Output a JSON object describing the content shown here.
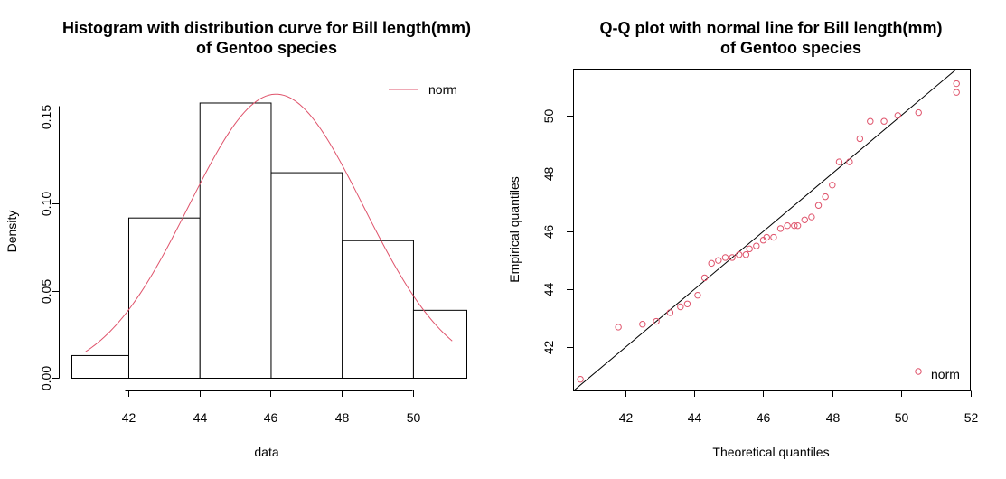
{
  "chart_data": [
    {
      "type": "histogram",
      "title_line1": "Histogram with distribution curve for Bill length(mm)",
      "title_line2": "of Gentoo species",
      "xlabel": "data",
      "ylabel": "Density",
      "xlim": [
        40.4,
        51.5
      ],
      "ylim": [
        0,
        0.165
      ],
      "x_ticks": [
        "42",
        "44",
        "46",
        "48",
        "50"
      ],
      "x_tick_values": [
        42,
        44,
        46,
        48,
        50
      ],
      "y_ticks": [
        "0.00",
        "0.05",
        "0.10",
        "0.15"
      ],
      "y_tick_values": [
        0,
        0.05,
        0.1,
        0.15
      ],
      "bins": [
        {
          "from": 40,
          "to": 42,
          "density": 0.013
        },
        {
          "from": 42,
          "to": 44,
          "density": 0.092
        },
        {
          "from": 44,
          "to": 46,
          "density": 0.158
        },
        {
          "from": 46,
          "to": 48,
          "density": 0.118
        },
        {
          "from": 48,
          "to": 50,
          "density": 0.079
        },
        {
          "from": 50,
          "to": 52,
          "density": 0.039
        }
      ],
      "curve": {
        "name": "norm",
        "type": "normal",
        "mean": 46.15,
        "sd": 2.45,
        "from": 40.8,
        "to": 51.1,
        "color": "#df536b"
      },
      "legend": {
        "position": "top-right",
        "entries": [
          "norm"
        ]
      }
    },
    {
      "type": "scatter",
      "title_line1": "Q-Q plot with normal line for Bill length(mm)",
      "title_line2": "of Gentoo species",
      "xlabel": "Theoretical quantiles",
      "ylabel": "Empirical quantiles",
      "xlim": [
        40.5,
        52
      ],
      "ylim": [
        40.5,
        51.6
      ],
      "x_ticks": [
        "42",
        "44",
        "46",
        "48",
        "50",
        "52"
      ],
      "x_tick_values": [
        42,
        44,
        46,
        48,
        50,
        52
      ],
      "y_ticks": [
        "42",
        "44",
        "46",
        "48",
        "50"
      ],
      "y_tick_values": [
        42,
        44,
        46,
        48,
        50
      ],
      "point_color": "#df536b",
      "points": [
        [
          40.7,
          40.9
        ],
        [
          41.8,
          42.7
        ],
        [
          42.5,
          42.8
        ],
        [
          42.9,
          42.9
        ],
        [
          43.3,
          43.2
        ],
        [
          43.6,
          43.4
        ],
        [
          43.8,
          43.5
        ],
        [
          44.1,
          43.8
        ],
        [
          44.3,
          44.4
        ],
        [
          44.5,
          44.9
        ],
        [
          44.7,
          45.0
        ],
        [
          44.9,
          45.1
        ],
        [
          45.1,
          45.1
        ],
        [
          45.3,
          45.2
        ],
        [
          45.5,
          45.2
        ],
        [
          45.6,
          45.4
        ],
        [
          45.8,
          45.5
        ],
        [
          46.0,
          45.7
        ],
        [
          46.1,
          45.8
        ],
        [
          46.3,
          45.8
        ],
        [
          46.5,
          46.1
        ],
        [
          46.7,
          46.2
        ],
        [
          46.9,
          46.2
        ],
        [
          47.0,
          46.2
        ],
        [
          47.2,
          46.4
        ],
        [
          47.4,
          46.5
        ],
        [
          47.6,
          46.9
        ],
        [
          47.8,
          47.2
        ],
        [
          48.0,
          47.6
        ],
        [
          48.2,
          48.4
        ],
        [
          48.5,
          48.4
        ],
        [
          48.8,
          49.2
        ],
        [
          49.1,
          49.8
        ],
        [
          49.5,
          49.8
        ],
        [
          49.9,
          50.0
        ],
        [
          50.5,
          50.1
        ],
        [
          51.6,
          50.8
        ],
        [
          51.6,
          51.1
        ]
      ],
      "reference_line": {
        "slope": 1,
        "intercept": 0,
        "color": "#000000"
      },
      "legend": {
        "position": "bottom-right",
        "entries": [
          "norm"
        ]
      }
    }
  ]
}
